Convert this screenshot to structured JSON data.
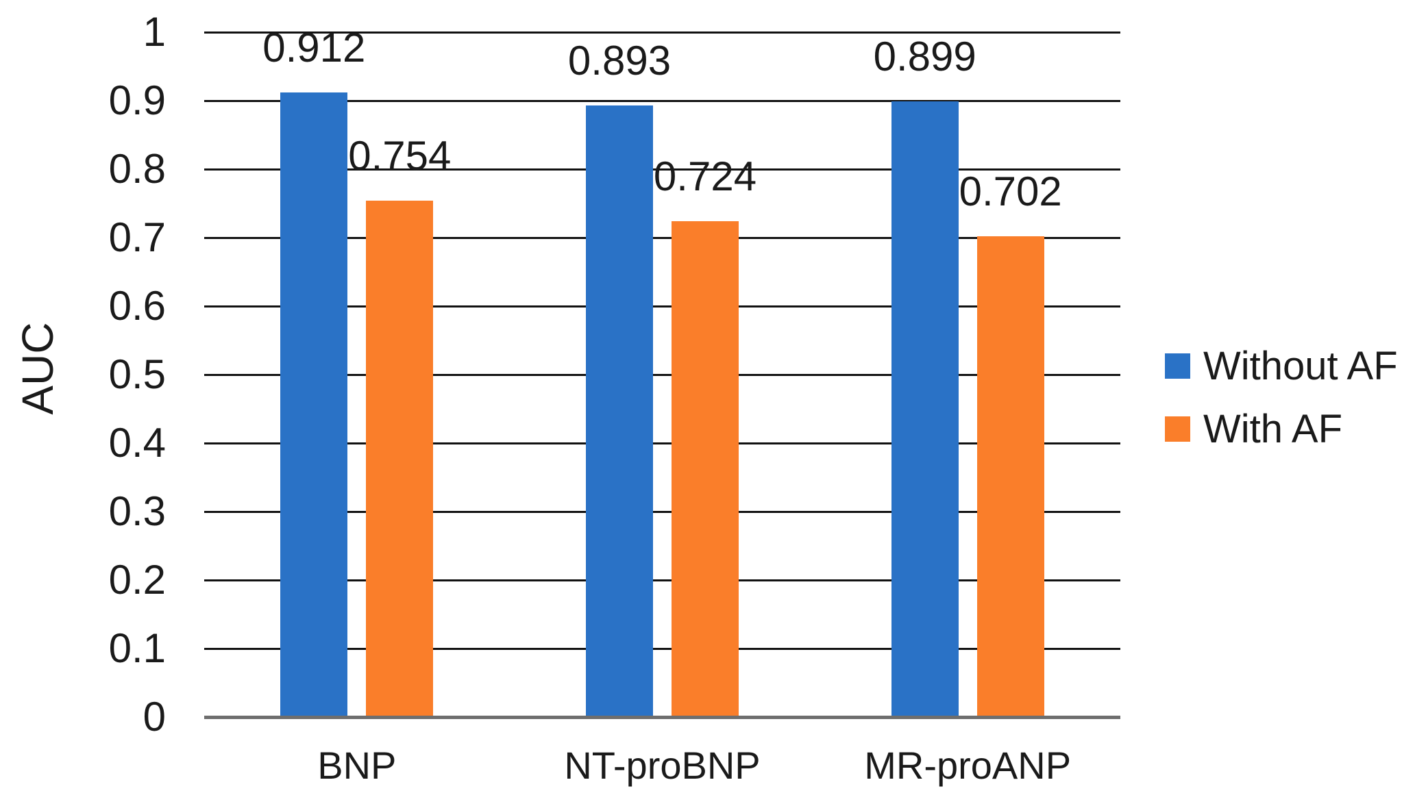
{
  "chart_data": {
    "type": "bar",
    "title": "",
    "ylabel": "AUC",
    "xlabel": "",
    "ylim": [
      0,
      1
    ],
    "ytick_step": 0.1,
    "ytick_labels": [
      "1",
      "0.9",
      "0.8",
      "0.7",
      "0.6",
      "0.5",
      "0.4",
      "0.3",
      "0.2",
      "0.1",
      "0"
    ],
    "grid": true,
    "legend_position": "right",
    "categories": [
      "BNP",
      "NT-proBNP",
      "MR-proANP"
    ],
    "series": [
      {
        "name": "Without AF",
        "color": "#2A72C6",
        "values": [
          0.912,
          0.893,
          0.899
        ],
        "labels": [
          "0.912",
          "0.893",
          "0.899"
        ]
      },
      {
        "name": "With AF",
        "color": "#FA7E2A",
        "values": [
          0.754,
          0.724,
          0.702
        ],
        "labels": [
          "0.754",
          "0.724",
          "0.702"
        ]
      }
    ],
    "colors": {
      "gridline": "#111111",
      "axis_line": "#6e6e6e",
      "text": "#1a1a1a",
      "background": "#ffffff"
    }
  }
}
